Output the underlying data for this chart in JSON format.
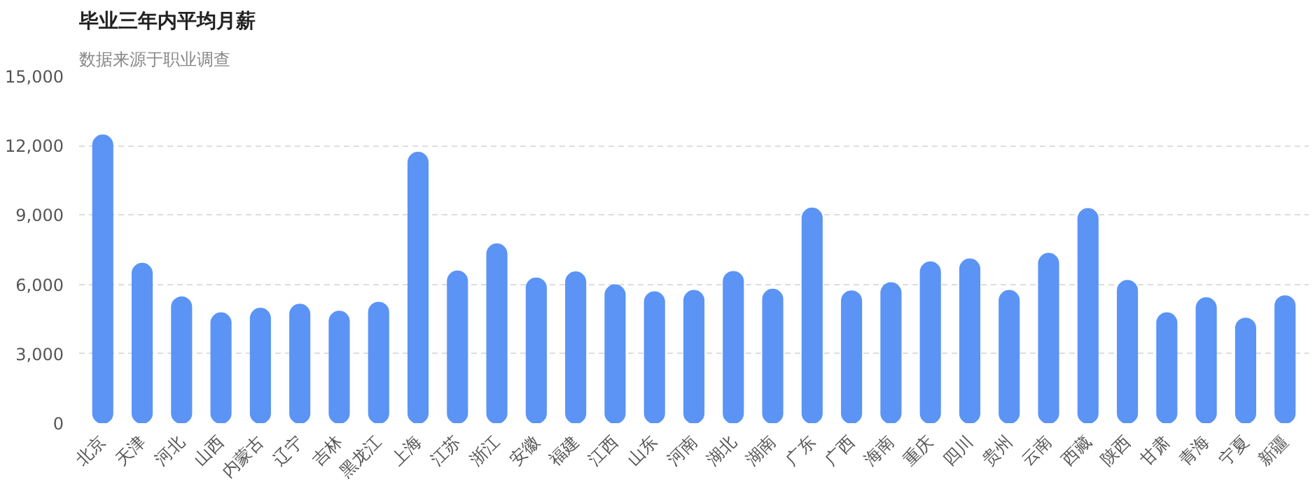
{
  "chart_data": {
    "type": "bar",
    "title": "毕业三年内平均月薪",
    "subtitle": "数据来源于职业调查",
    "categories": [
      "北京",
      "天津",
      "河北",
      "山西",
      "内蒙古",
      "辽宁",
      "吉林",
      "黑龙江",
      "上海",
      "江苏",
      "浙江",
      "安徽",
      "福建",
      "江西",
      "山东",
      "河南",
      "湖北",
      "湖南",
      "广东",
      "广西",
      "海南",
      "重庆",
      "四川",
      "贵州",
      "云南",
      "西藏",
      "陕西",
      "甘肃",
      "青海",
      "宁夏",
      "新疆"
    ],
    "values": [
      12450,
      6900,
      5450,
      4760,
      4960,
      5130,
      4830,
      5220,
      11700,
      6570,
      7740,
      6270,
      6530,
      5970,
      5670,
      5730,
      6550,
      5780,
      9290,
      5710,
      6060,
      6960,
      7090,
      5730,
      7330,
      9270,
      6160,
      4760,
      5410,
      4530,
      5500
    ],
    "color": "#5b94f5",
    "ylim": [
      0,
      15000
    ],
    "yticks": [
      {
        "value": 0,
        "label": "0"
      },
      {
        "value": 3000,
        "label": "3,000"
      },
      {
        "value": 6000,
        "label": "6,000"
      },
      {
        "value": 9000,
        "label": "9,000"
      },
      {
        "value": 12000,
        "label": "12,000"
      },
      {
        "value": 15000,
        "label": "15,000"
      }
    ],
    "grid": "y"
  }
}
